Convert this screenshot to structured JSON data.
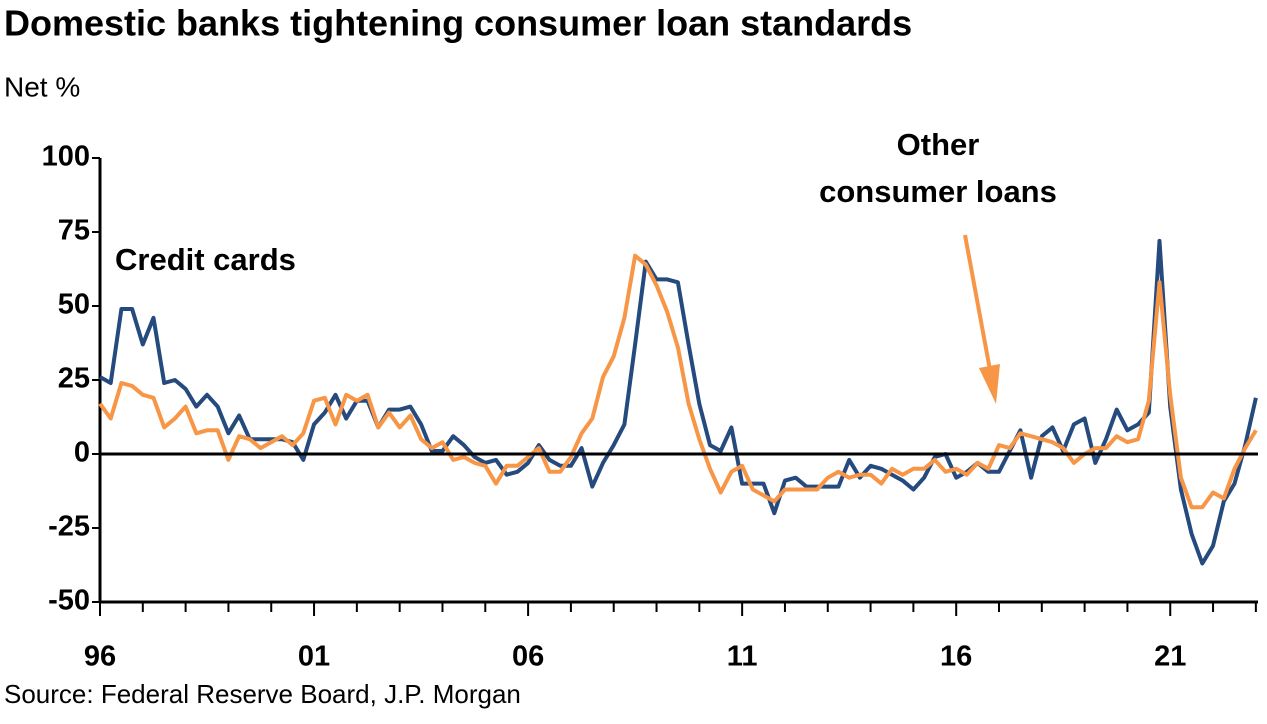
{
  "chart_data": {
    "type": "line",
    "title": "Domestic banks tightening consumer loan standards",
    "subtitle": "Net %",
    "source": "Source: Federal Reserve Board, J.P. Morgan",
    "annotations": [
      "Credit cards",
      "Other",
      "consumer loans"
    ],
    "x": [
      1996,
      1996.25,
      1996.5,
      1996.75,
      1997,
      1997.25,
      1997.5,
      1997.75,
      1998,
      1998.25,
      1998.5,
      1998.75,
      1999,
      1999.25,
      1999.5,
      1999.75,
      2000,
      2000.25,
      2000.5,
      2000.75,
      2001,
      2001.25,
      2001.5,
      2001.75,
      2002,
      2002.25,
      2002.5,
      2002.75,
      2003,
      2003.25,
      2003.5,
      2003.75,
      2004,
      2004.25,
      2004.5,
      2004.75,
      2005,
      2005.25,
      2005.5,
      2005.75,
      2006,
      2006.25,
      2006.5,
      2006.75,
      2007,
      2007.25,
      2007.5,
      2007.75,
      2008,
      2008.25,
      2008.5,
      2008.75,
      2009,
      2009.25,
      2009.5,
      2009.75,
      2010,
      2010.25,
      2010.5,
      2010.75,
      2011,
      2011.25,
      2011.5,
      2011.75,
      2012,
      2012.25,
      2012.5,
      2012.75,
      2013,
      2013.25,
      2013.5,
      2013.75,
      2014,
      2014.25,
      2014.5,
      2014.75,
      2015,
      2015.25,
      2015.5,
      2015.75,
      2016,
      2016.25,
      2016.5,
      2016.75,
      2017,
      2017.25,
      2017.5,
      2017.75,
      2018,
      2018.25,
      2018.5,
      2018.75,
      2019,
      2019.25,
      2019.5,
      2019.75,
      2020,
      2020.25,
      2020.5,
      2020.75,
      2021,
      2021.25,
      2021.5,
      2021.75,
      2022,
      2022.25,
      2022.5,
      2022.75,
      2023
    ],
    "series": [
      {
        "name": "Credit cards",
        "color": "#254a7d",
        "values": [
          26,
          24,
          49,
          49,
          37,
          46,
          24,
          25,
          22,
          16,
          20,
          16,
          7,
          13,
          5,
          5,
          5,
          5,
          4,
          -2,
          10,
          14,
          20,
          12,
          18,
          18,
          9,
          15,
          15,
          16,
          10,
          1,
          1,
          6,
          3,
          -1,
          -3,
          -2,
          -7,
          -6,
          -3,
          3,
          -2,
          -4,
          -4,
          2,
          -11,
          -3,
          3,
          10,
          37,
          65,
          59,
          59,
          58,
          37,
          17,
          3,
          1,
          9,
          -10,
          -10,
          -10,
          -20,
          -9,
          -8,
          -11,
          -11,
          -11,
          -11,
          -2,
          -8,
          -4,
          -5,
          -7,
          -9,
          -12,
          -8,
          -1,
          0,
          -8,
          -6,
          -3,
          -6,
          -6,
          1,
          8,
          -8,
          6,
          9,
          1,
          10,
          12,
          -3,
          5,
          15,
          8,
          10,
          14,
          72,
          16,
          -12,
          -27,
          -37,
          -31,
          -16,
          -10,
          3,
          19
        ]
      },
      {
        "name": "Other consumer loans",
        "color": "#f79646",
        "values": [
          17,
          12,
          24,
          23,
          20,
          19,
          9,
          12,
          16,
          7,
          8,
          8,
          -2,
          6,
          5,
          2,
          4,
          6,
          3,
          7,
          18,
          19,
          10,
          20,
          18,
          20,
          9,
          14,
          9,
          13,
          5,
          2,
          4,
          -2,
          -1,
          -3,
          -4,
          -10,
          -4,
          -4,
          -1,
          2,
          -6,
          -6,
          -1,
          7,
          12,
          26,
          33,
          46,
          67,
          64,
          57,
          48,
          36,
          17,
          5,
          -5,
          -13,
          -6,
          -4,
          -12,
          -14,
          -16,
          -12,
          -12,
          -12,
          -12,
          -8,
          -6,
          -8,
          -7,
          -7,
          -10,
          -5,
          -7,
          -5,
          -5,
          -2,
          -6,
          -5,
          -7,
          -3,
          -5,
          3,
          2,
          7,
          6,
          5,
          4,
          2,
          -3,
          0,
          2,
          2,
          6,
          4,
          5,
          18,
          58,
          20,
          -8,
          -18,
          -18,
          -13,
          -15,
          -5,
          2,
          8
        ]
      }
    ],
    "xlim": [
      1996,
      2023.05
    ],
    "xticks": [
      {
        "value": 1996,
        "label": "96"
      },
      {
        "value": 2001,
        "label": "01"
      },
      {
        "value": 2006,
        "label": "06"
      },
      {
        "value": 2011,
        "label": "11"
      },
      {
        "value": 2016,
        "label": "16"
      },
      {
        "value": 2021,
        "label": "21"
      }
    ],
    "xticks_minor": [
      1997,
      1998,
      1999,
      2000,
      2002,
      2003,
      2004,
      2005,
      2007,
      2008,
      2009,
      2010,
      2012,
      2013,
      2014,
      2015,
      2017,
      2018,
      2019,
      2020,
      2022,
      2023
    ],
    "ylim": [
      -50,
      100
    ],
    "yticks": [
      -50,
      -25,
      0,
      25,
      50,
      75,
      100
    ],
    "zero_line": true,
    "grid": false
  }
}
